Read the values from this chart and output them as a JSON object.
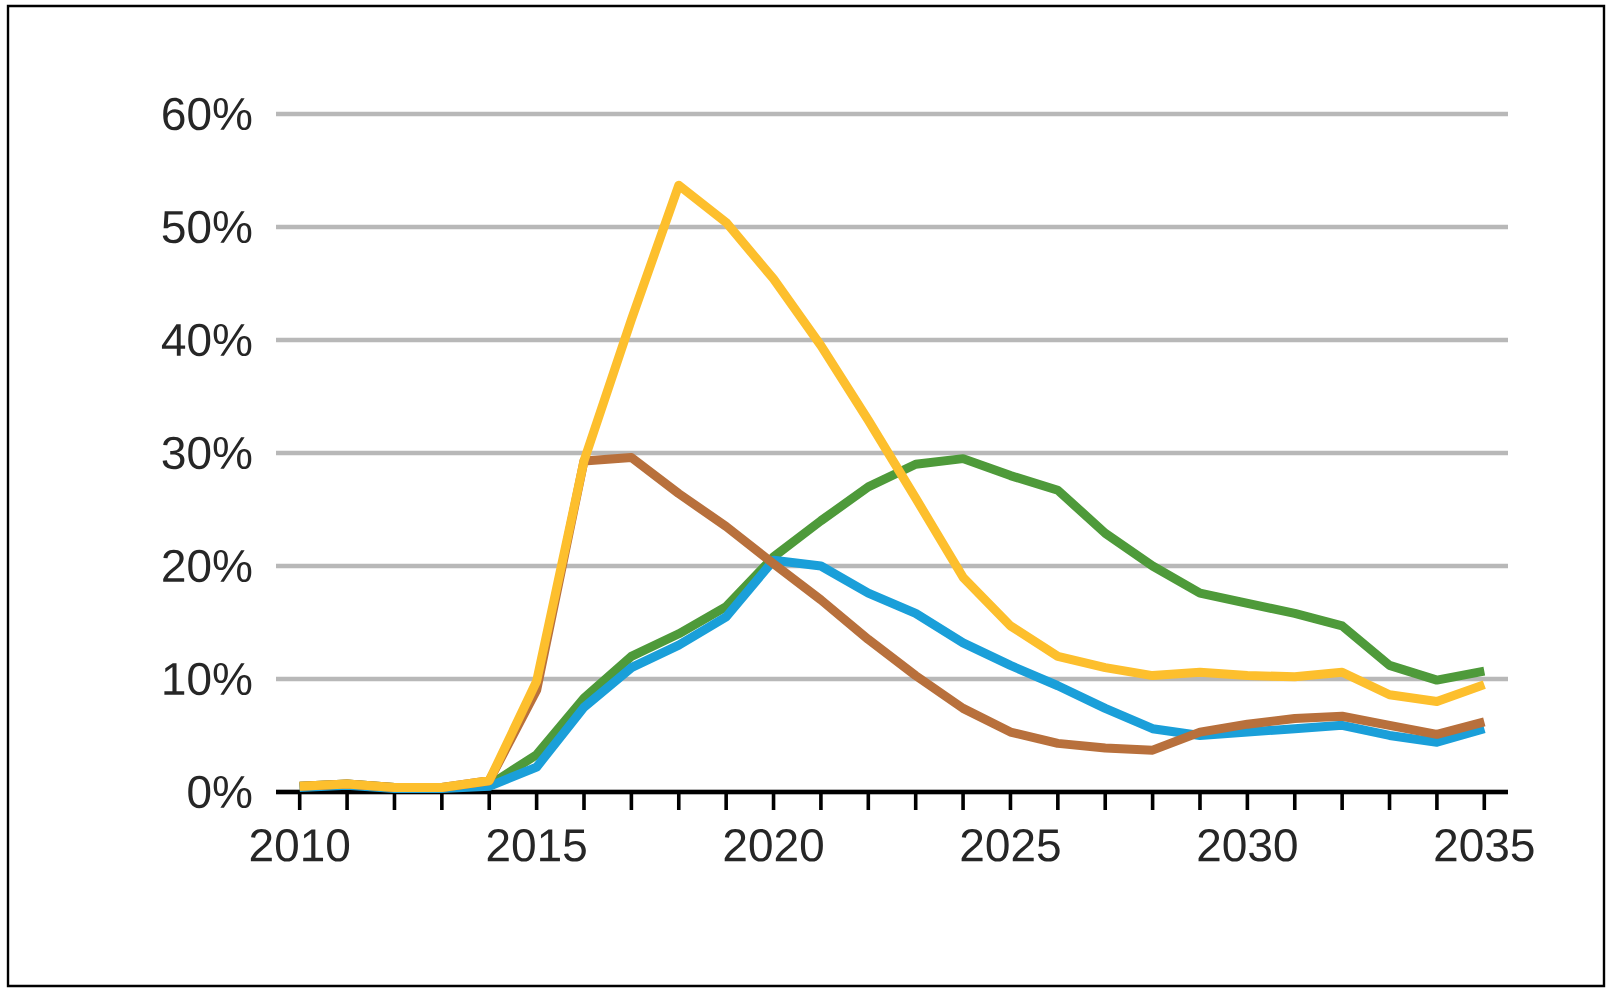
{
  "chart_data": {
    "type": "line",
    "x": [
      2010,
      2011,
      2012,
      2013,
      2014,
      2015,
      2016,
      2017,
      2018,
      2019,
      2020,
      2021,
      2022,
      2023,
      2024,
      2025,
      2026,
      2027,
      2028,
      2029,
      2030,
      2031,
      2032,
      2033,
      2034,
      2035
    ],
    "series": [
      {
        "color": "#4e9a3a",
        "values": [
          0.5,
          0.7,
          0.4,
          0.4,
          0.6,
          3.3,
          8.3,
          12,
          14,
          16.4,
          20.8,
          24,
          27,
          29,
          29.5,
          28,
          26.7,
          22.9,
          20,
          17.6,
          16.7,
          15.8,
          14.7,
          11.2,
          9.9,
          10.7
        ]
      },
      {
        "color": "#1a9fd9",
        "values": [
          0.4,
          0.6,
          0.3,
          0.3,
          0.5,
          2.2,
          7.5,
          11,
          13,
          15.5,
          20.5,
          20,
          17.6,
          15.8,
          13.2,
          11.2,
          9.4,
          7.4,
          5.6,
          5,
          5.3,
          5.6,
          5.9,
          5,
          4.4,
          5.6
        ]
      },
      {
        "color": "#b8703c",
        "values": [
          0.5,
          0.7,
          0.4,
          0.4,
          1,
          9,
          29.3,
          29.6,
          26.4,
          23.5,
          20.2,
          17,
          13.5,
          10.3,
          7.4,
          5.3,
          4.3,
          3.9,
          3.7,
          5.3,
          6,
          6.5,
          6.7,
          5.9,
          5.1,
          6.2
        ]
      },
      {
        "color": "#fdbf2d",
        "values": [
          0.5,
          0.7,
          0.4,
          0.4,
          1,
          9.8,
          29.3,
          41.8,
          53.7,
          50.4,
          45.4,
          39.5,
          32.9,
          26,
          19,
          14.7,
          12,
          11,
          10.3,
          10.6,
          10.3,
          10.2,
          10.6,
          8.6,
          8,
          9.5
        ]
      }
    ],
    "xlim": [
      2009.5,
      2035.5
    ],
    "xticks": [
      2010,
      {
        "value": 2011,
        "label": null
      },
      {
        "value": 2012,
        "label": null
      },
      {
        "value": 2013,
        "label": null
      },
      {
        "value": 2014,
        "label": null
      },
      2015,
      {
        "value": 2016,
        "label": null
      },
      {
        "value": 2017,
        "label": null
      },
      {
        "value": 2018,
        "label": null
      },
      {
        "value": 2019,
        "label": null
      },
      2020,
      {
        "value": 2021,
        "label": null
      },
      {
        "value": 2022,
        "label": null
      },
      {
        "value": 2023,
        "label": null
      },
      {
        "value": 2024,
        "label": null
      },
      2025,
      {
        "value": 2026,
        "label": null
      },
      {
        "value": 2027,
        "label": null
      },
      {
        "value": 2028,
        "label": null
      },
      {
        "value": 2029,
        "label": null
      },
      2030,
      {
        "value": 2031,
        "label": null
      },
      {
        "value": 2032,
        "label": null
      },
      {
        "value": 2033,
        "label": null
      },
      {
        "value": 2034,
        "label": null
      },
      2035
    ],
    "ylim": [
      0,
      60
    ],
    "yticks": [
      {
        "value": 0,
        "label": "0%"
      },
      {
        "value": 10,
        "label": "10%"
      },
      {
        "value": 20,
        "label": "20%"
      },
      {
        "value": 30,
        "label": "30%"
      },
      {
        "value": 40,
        "label": "40%"
      },
      {
        "value": 50,
        "label": "50%"
      },
      {
        "value": 60,
        "label": "60%"
      }
    ],
    "grid": "y",
    "line_style": "solid"
  }
}
